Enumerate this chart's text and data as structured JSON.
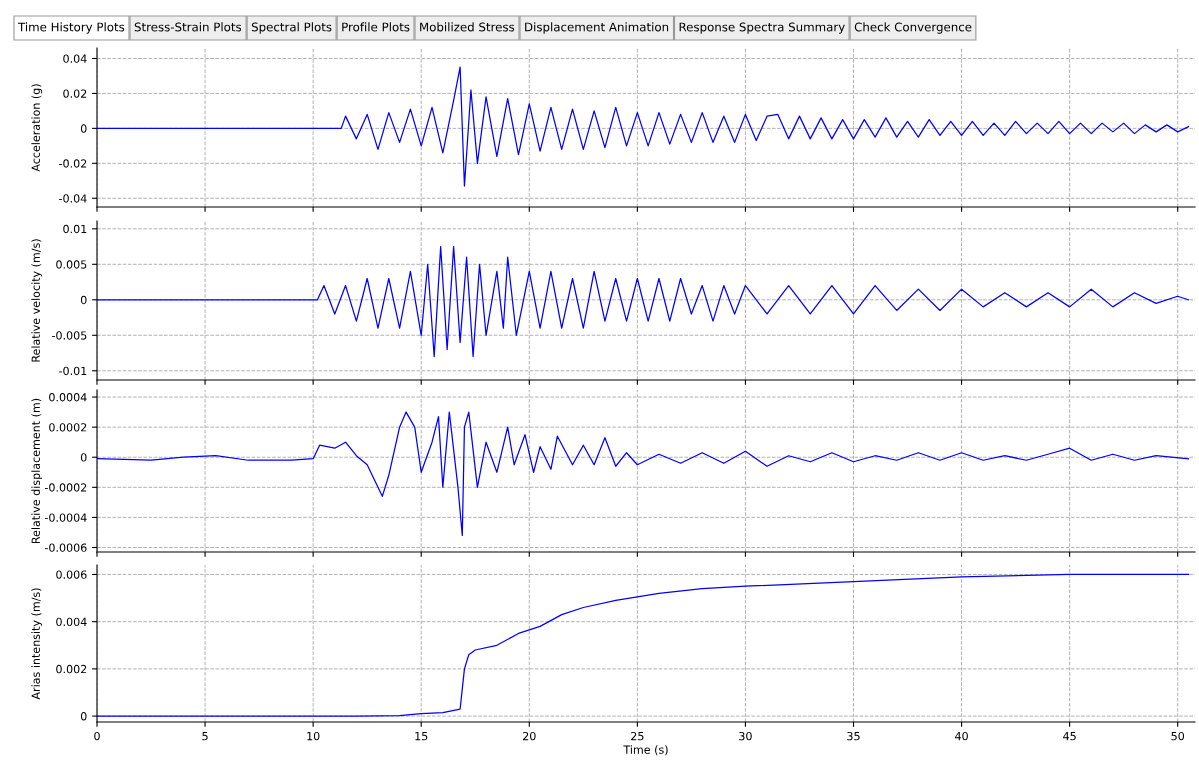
{
  "chart_data": [
    {
      "type": "line",
      "ylabel": "Acceleration (g)",
      "color": "#0000ff",
      "grid": true,
      "tick_labels": "y",
      "xlim": [
        0,
        50.8
      ],
      "ylim": [
        -0.045,
        0.046
      ],
      "yticks": [
        -0.04,
        -0.02,
        0,
        0.02,
        0.04
      ],
      "annotations": [
        "Time History Plots",
        "Stress-Strain Plots",
        "Spectral Plots",
        "Profile Plots",
        "Mobilized Stress",
        "Displacement Animation",
        "Response Spectra Summary",
        "Check Convergence"
      ],
      "x": [
        0,
        5,
        10,
        11,
        11.3,
        11.5,
        12,
        12.5,
        13,
        13.5,
        14,
        14.5,
        15,
        15.5,
        16,
        16.5,
        16.8,
        17.0,
        17.3,
        17.6,
        18,
        18.5,
        19,
        19.5,
        20,
        20.5,
        21,
        21.5,
        22,
        22.5,
        23,
        23.5,
        24,
        24.5,
        25,
        25.5,
        26,
        26.5,
        27,
        27.5,
        28,
        28.5,
        29,
        29.5,
        30,
        30.5,
        31,
        31.5,
        32,
        32.5,
        33,
        33.5,
        34,
        34.5,
        35,
        35.5,
        36,
        36.5,
        37,
        37.5,
        38,
        38.5,
        39,
        39.5,
        40,
        40.5,
        41,
        41.5,
        42,
        42.5,
        43,
        43.5,
        44,
        44.5,
        45,
        45.5,
        46,
        46.5,
        47,
        47.5,
        48,
        48.5,
        49,
        49.5,
        50,
        50.5
      ],
      "values": [
        0,
        0,
        0,
        0,
        0,
        0.007,
        -0.006,
        0.008,
        -0.012,
        0.009,
        -0.008,
        0.011,
        -0.01,
        0.012,
        -0.014,
        0.016,
        0.035,
        -0.033,
        0.022,
        -0.02,
        0.018,
        -0.016,
        0.017,
        -0.015,
        0.014,
        -0.013,
        0.012,
        -0.012,
        0.011,
        -0.012,
        0.01,
        -0.011,
        0.012,
        -0.01,
        0.009,
        -0.01,
        0.009,
        -0.009,
        0.008,
        -0.008,
        0.009,
        -0.008,
        0.007,
        -0.008,
        0.008,
        -0.007,
        0.007,
        0.008,
        -0.006,
        0.007,
        -0.006,
        0.006,
        -0.006,
        0.005,
        -0.006,
        0.005,
        -0.005,
        0.006,
        -0.005,
        0.004,
        -0.005,
        0.005,
        -0.004,
        0.004,
        -0.004,
        0.004,
        -0.004,
        0.003,
        -0.004,
        0.004,
        -0.003,
        0.003,
        -0.003,
        0.004,
        -0.003,
        0.003,
        -0.003,
        0.003,
        -0.002,
        0.003,
        -0.003,
        0.002,
        -0.002,
        0.002,
        -0.002,
        0.001
      ]
    },
    {
      "type": "line",
      "ylabel": "Relative velocity (m/s)",
      "color": "#0000ff",
      "grid": true,
      "tick_labels": "y",
      "xlim": [
        0,
        50.8
      ],
      "ylim": [
        -0.0113,
        0.0111
      ],
      "yticks": [
        -0.01,
        -0.005,
        0,
        0.005,
        0.01
      ],
      "x": [
        0,
        5,
        10,
        10.2,
        10.5,
        11,
        11.5,
        12,
        12.5,
        13,
        13.5,
        14,
        14.5,
        15,
        15.3,
        15.6,
        15.9,
        16.2,
        16.5,
        16.8,
        17.1,
        17.4,
        17.7,
        18,
        18.5,
        18.8,
        19,
        19.4,
        20,
        20.5,
        21,
        21.5,
        22,
        22.5,
        23,
        23.5,
        24,
        24.5,
        25,
        25.5,
        26,
        26.5,
        27,
        27.5,
        28,
        28.5,
        29,
        29.5,
        30,
        31,
        32,
        33,
        34,
        35,
        36,
        37,
        38,
        39,
        40,
        41,
        42,
        43,
        44,
        45,
        46,
        47,
        48,
        49,
        50,
        50.5
      ],
      "values": [
        0,
        0,
        0,
        0,
        0.002,
        -0.002,
        0.002,
        -0.003,
        0.003,
        -0.004,
        0.003,
        -0.004,
        0.004,
        -0.005,
        0.005,
        -0.008,
        0.0075,
        -0.007,
        0.0075,
        -0.006,
        0.006,
        -0.008,
        0.005,
        -0.005,
        0.004,
        -0.004,
        0.006,
        -0.005,
        0.004,
        -0.004,
        0.004,
        -0.004,
        0.003,
        -0.004,
        0.004,
        -0.003,
        0.003,
        -0.003,
        0.003,
        -0.003,
        0.003,
        -0.003,
        0.003,
        -0.002,
        0.002,
        -0.003,
        0.002,
        -0.002,
        0.002,
        -0.002,
        0.002,
        -0.002,
        0.002,
        -0.002,
        0.002,
        -0.0015,
        0.0015,
        -0.0015,
        0.0015,
        -0.001,
        0.001,
        -0.001,
        0.001,
        -0.001,
        0.0015,
        -0.001,
        0.001,
        -0.0005,
        0.0005,
        0
      ]
    },
    {
      "type": "line",
      "ylabel": "Relative displacement (m)",
      "color": "#0000ff",
      "grid": true,
      "tick_labels": "y",
      "xlim": [
        0,
        50.8
      ],
      "ylim": [
        -0.00063,
        0.000447
      ],
      "yticks": [
        -0.0006,
        -0.0004,
        -0.0002,
        0,
        0.0002,
        0.0004
      ],
      "x": [
        0,
        2.5,
        4,
        5.5,
        7,
        9,
        10,
        10.3,
        11,
        11.5,
        12,
        12.5,
        13,
        13.2,
        13.5,
        14,
        14.3,
        14.7,
        15,
        15.5,
        15.8,
        16,
        16.3,
        16.7,
        16.9,
        17,
        17.2,
        17.6,
        18,
        18.5,
        19,
        19.3,
        19.8,
        20.2,
        20.5,
        21,
        21.3,
        22,
        22.5,
        23,
        23.5,
        24,
        24.5,
        25,
        26,
        27,
        28,
        29,
        30,
        31,
        32,
        33,
        34,
        35,
        36,
        37,
        38,
        39,
        40,
        41,
        42,
        43,
        44,
        45,
        46,
        47,
        48,
        49,
        50.5
      ],
      "values": [
        -1e-05,
        -2e-05,
        0,
        1e-05,
        -2e-05,
        -2e-05,
        -1e-05,
        8e-05,
        6e-05,
        0.0001,
        1e-05,
        -5e-05,
        -0.0002,
        -0.00026,
        -0.00012,
        0.0002,
        0.0003,
        0.0002,
        -0.0001,
        0.0001,
        0.00027,
        -0.0002,
        0.0003,
        -0.0002,
        -0.00052,
        0.0002,
        0.0003,
        -0.0002,
        0.0001,
        -0.0001,
        0.0002,
        -5e-05,
        0.00015,
        -0.0001,
        7e-05,
        -8e-05,
        0.00014,
        -5e-05,
        8e-05,
        -5e-05,
        0.00013,
        -6e-05,
        3e-05,
        -5e-05,
        2e-05,
        -4e-05,
        3e-05,
        -4e-05,
        4e-05,
        -6e-05,
        1e-05,
        -3e-05,
        3e-05,
        -3e-05,
        1e-05,
        -2e-05,
        3e-05,
        -2e-05,
        3e-05,
        -2e-05,
        1e-05,
        -2e-05,
        2e-05,
        6e-05,
        -2e-05,
        2e-05,
        -2e-05,
        1e-05,
        -1e-05
      ]
    },
    {
      "type": "line",
      "ylabel": "Arias intensity (m/s)",
      "xlabel": "Time (s)",
      "color": "#0000ff",
      "grid": true,
      "xlim": [
        0,
        50.8
      ],
      "xticks": [
        0,
        5,
        10,
        15,
        20,
        25,
        30,
        35,
        40,
        45,
        50
      ],
      "ylim": [
        -0.00025,
        0.0064
      ],
      "yticks": [
        0,
        0.002,
        0.004,
        0.006
      ],
      "x": [
        0,
        12,
        14,
        15,
        16,
        16.8,
        17.0,
        17.2,
        17.5,
        18.5,
        19.5,
        20.5,
        21.5,
        22.5,
        24,
        26,
        28,
        30,
        35,
        40,
        45,
        50.5
      ],
      "values": [
        0,
        0,
        2e-05,
        0.0001,
        0.00015,
        0.0003,
        0.002,
        0.0026,
        0.0028,
        0.003,
        0.0035,
        0.0038,
        0.0043,
        0.0046,
        0.0049,
        0.0052,
        0.0054,
        0.0055,
        0.0057,
        0.0059,
        0.006,
        0.006
      ]
    }
  ]
}
